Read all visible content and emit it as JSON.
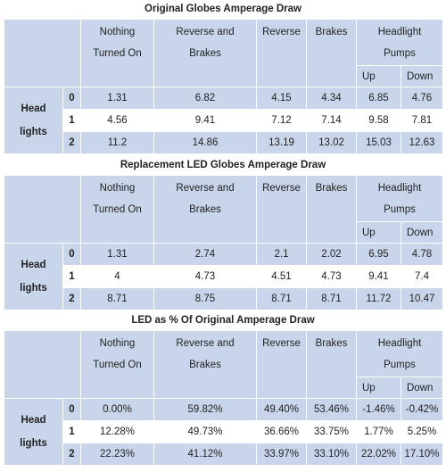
{
  "tables": [
    {
      "title": "Original Globes Amperage Draw",
      "columns": {
        "nothing": [
          "Nothing",
          "Turned On"
        ],
        "reverse_brakes": [
          "Reverse and",
          "Brakes"
        ],
        "reverse": "Reverse",
        "brakes": "Brakes",
        "headlight": [
          "Headlight",
          "Pumps"
        ],
        "up": "Up",
        "down": "Down"
      },
      "row_label": [
        "Head",
        "lights"
      ],
      "rows": [
        {
          "index": "0",
          "values": [
            "1.31",
            "6.82",
            "4.15",
            "4.34",
            "6.85",
            "4.76"
          ]
        },
        {
          "index": "1",
          "values": [
            "4.56",
            "9.41",
            "7.12",
            "7.14",
            "9.58",
            "7.81"
          ]
        },
        {
          "index": "2",
          "values": [
            "11.2",
            "14.86",
            "13.19",
            "13.02",
            "15.03",
            "12.63"
          ]
        }
      ]
    },
    {
      "title": "Replacement LED Globes Amperage Draw",
      "columns": {
        "nothing": [
          "Nothing",
          "Turned On"
        ],
        "reverse_brakes": [
          "Reverse and",
          "Brakes"
        ],
        "reverse": "Reverse",
        "brakes": "Brakes",
        "headlight": [
          "Headlight",
          "Pumps"
        ],
        "up": "Up",
        "down": "Down"
      },
      "row_label": [
        "Head",
        "lights"
      ],
      "rows": [
        {
          "index": "0",
          "values": [
            "1.31",
            "2.74",
            "2.1",
            "2.02",
            "6.95",
            "4.78"
          ]
        },
        {
          "index": "1",
          "values": [
            "4",
            "4.73",
            "4.51",
            "4.73",
            "9.41",
            "7.4"
          ]
        },
        {
          "index": "2",
          "values": [
            "8.71",
            "8.75",
            "8.71",
            "8.71",
            "11.72",
            "10.47"
          ]
        }
      ]
    },
    {
      "title": "LED as % Of Original Amperage Draw",
      "columns": {
        "nothing": [
          "Nothing",
          "Turned On"
        ],
        "reverse_brakes": [
          "Reverse and",
          "Brakes"
        ],
        "reverse": "Reverse",
        "brakes": "Brakes",
        "headlight": [
          "Headlight",
          "Pumps"
        ],
        "up": "Up",
        "down": "Down"
      },
      "row_label": [
        "Head",
        "lights"
      ],
      "rows": [
        {
          "index": "0",
          "values": [
            "0.00%",
            "59.82%",
            "49.40%",
            "53.46%",
            "-1.46%",
            "-0.42%"
          ]
        },
        {
          "index": "1",
          "values": [
            "12.28%",
            "49.73%",
            "36.66%",
            "33.75%",
            "1.77%",
            "5.25%"
          ]
        },
        {
          "index": "2",
          "values": [
            "22.23%",
            "41.12%",
            "33.97%",
            "33.10%",
            "22.02%",
            "17.10%"
          ]
        }
      ]
    }
  ],
  "colors": {
    "header_fill": "#c9d5ea",
    "white": "#ffffff"
  }
}
